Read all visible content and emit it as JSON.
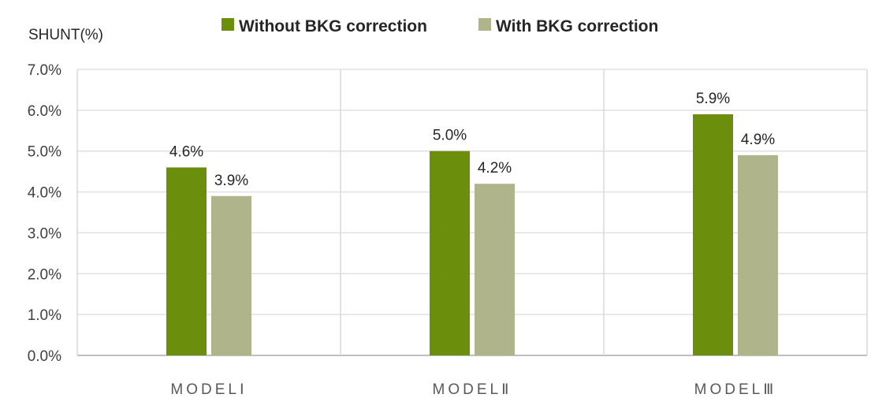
{
  "chart_data": {
    "type": "bar",
    "ylabel": "SHUNT(%)",
    "categories": [
      "MODELⅠ",
      "MODELⅡ",
      "MODELⅢ"
    ],
    "series": [
      {
        "name": "Without BKG correction",
        "values": [
          4.6,
          5.0,
          5.9
        ],
        "labels": [
          "4.6%",
          "5.0%",
          "5.9%"
        ],
        "color": "#6b8e0c"
      },
      {
        "name": "With BKG correction",
        "values": [
          3.9,
          4.2,
          4.9
        ],
        "labels": [
          "3.9%",
          "4.2%",
          "4.9%"
        ],
        "color": "#afb48a"
      }
    ],
    "ylim": [
      0,
      7
    ],
    "yticks": [
      "0.0%",
      "1.0%",
      "2.0%",
      "3.0%",
      "4.0%",
      "5.0%",
      "6.0%",
      "7.0%"
    ],
    "grid": true,
    "legend_position": "top"
  }
}
